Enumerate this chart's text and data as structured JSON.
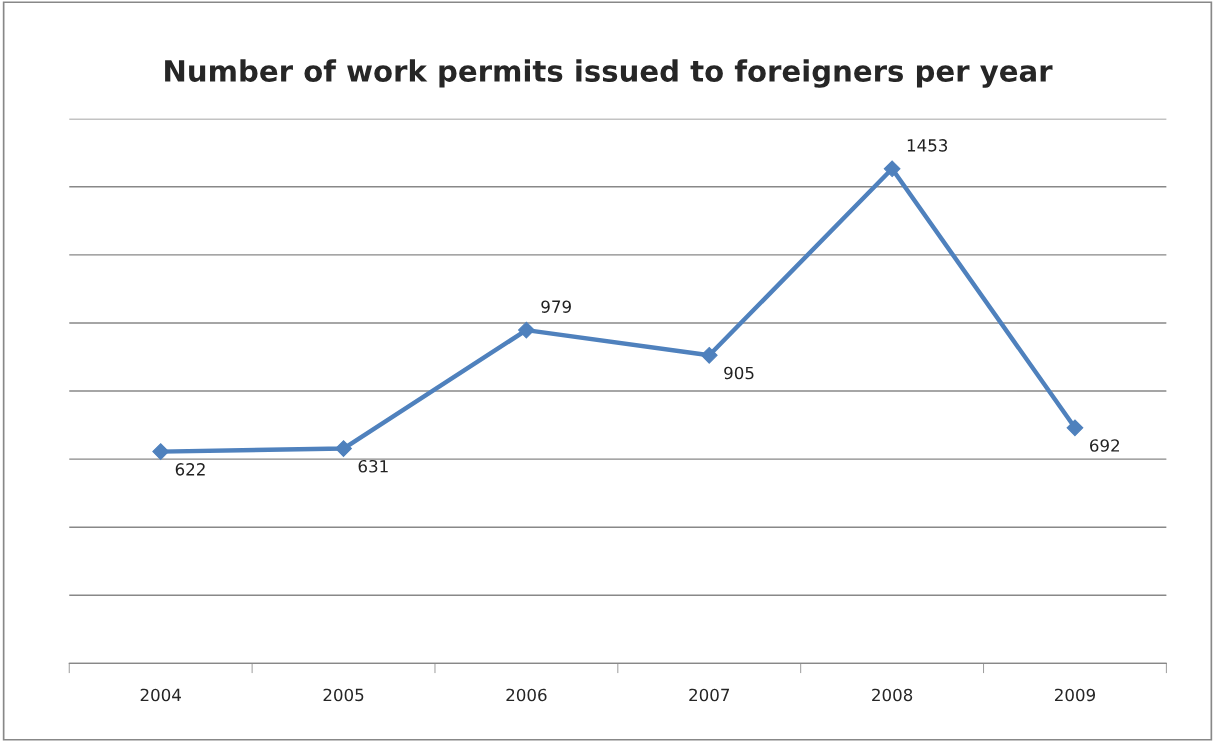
{
  "chart_data": {
    "type": "line",
    "title": "Number of work permits issued to foreigners per year",
    "categories": [
      "2004",
      "2005",
      "2006",
      "2007",
      "2008",
      "2009"
    ],
    "series": [
      {
        "color": "#4f81bd",
        "values": [
          622,
          631,
          979,
          905,
          1453,
          692
        ]
      }
    ],
    "ylim": [
      0,
      1600
    ],
    "yticks": [
      {
        "value": 0,
        "label": null
      },
      {
        "value": 200,
        "label": null
      },
      {
        "value": 400,
        "label": null
      },
      {
        "value": 600,
        "label": null
      },
      {
        "value": 800,
        "label": null
      },
      {
        "value": 1000,
        "label": null
      },
      {
        "value": 1200,
        "label": null
      },
      {
        "value": 1400,
        "label": null
      },
      {
        "value": 1600,
        "label": null
      }
    ],
    "grid": "y",
    "tick_labels": "x",
    "marker": "diamond",
    "line_style": "solid",
    "data_labels": true,
    "legend": false
  }
}
